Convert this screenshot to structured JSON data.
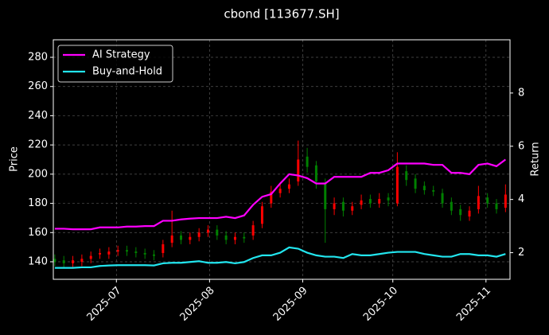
{
  "chart_data": {
    "type": "candlestick",
    "title": "cbond [113677.SH]",
    "ylabel": "Price",
    "y2label": "Return",
    "x": [
      1,
      4,
      7,
      10,
      13,
      16,
      19,
      22,
      25,
      28,
      31,
      34,
      37,
      40,
      43,
      46,
      49,
      52,
      55,
      58,
      61,
      64,
      67,
      70,
      73,
      76,
      79,
      82,
      85,
      88,
      91,
      94,
      97,
      100,
      103,
      106,
      109,
      112,
      115,
      118,
      121,
      124,
      127,
      130,
      133,
      136,
      139,
      142,
      145,
      148,
      151
    ],
    "open": [
      142,
      141,
      139,
      140,
      142,
      145,
      145,
      147,
      148,
      147,
      146,
      145,
      146,
      153,
      158,
      155,
      157,
      160,
      162,
      158,
      155,
      157,
      158,
      166,
      180,
      187,
      190,
      195,
      212,
      206,
      194,
      176,
      181,
      175,
      179,
      183,
      180,
      184,
      180,
      202,
      197,
      192,
      189,
      187,
      181,
      176,
      171,
      176,
      184,
      180,
      177
    ],
    "high": [
      145,
      144,
      144,
      145,
      147,
      149,
      150,
      151,
      151,
      150,
      149,
      148,
      155,
      175,
      161,
      160,
      163,
      165,
      165,
      161,
      160,
      160,
      168,
      181,
      192,
      194,
      197,
      223,
      218,
      209,
      197,
      184,
      184,
      181,
      186,
      186,
      187,
      187,
      215,
      206,
      200,
      195,
      192,
      190,
      184,
      179,
      178,
      192,
      187,
      183,
      193
    ],
    "low": [
      137,
      136,
      136,
      137,
      139,
      142,
      142,
      144,
      144,
      143,
      142,
      141,
      143,
      150,
      152,
      152,
      154,
      157,
      155,
      152,
      152,
      153,
      155,
      163,
      177,
      184,
      187,
      192,
      201,
      190,
      153,
      172,
      171,
      172,
      176,
      177,
      177,
      178,
      178,
      192,
      187,
      186,
      185,
      177,
      172,
      168,
      168,
      173,
      177,
      173,
      174
    ],
    "close": [
      140,
      139,
      141,
      142,
      144,
      146,
      147,
      148,
      147,
      146,
      145,
      144,
      152,
      158,
      155,
      157,
      160,
      162,
      158,
      155,
      157,
      156,
      165,
      178,
      188,
      190,
      193,
      210,
      205,
      195,
      176,
      180,
      175,
      178,
      182,
      180,
      183,
      182,
      205,
      196,
      190,
      189,
      188,
      180,
      175,
      172,
      175,
      185,
      180,
      176,
      186
    ],
    "up_color": "#ff0000",
    "down_color": "#008000",
    "series": [
      {
        "name": "AI Strategy",
        "color": "#ff00ff",
        "axis": "y2",
        "values": [
          2.9,
          2.9,
          2.88,
          2.88,
          2.88,
          2.95,
          2.95,
          2.95,
          2.98,
          2.98,
          3.0,
          3.0,
          3.2,
          3.2,
          3.25,
          3.28,
          3.3,
          3.3,
          3.3,
          3.35,
          3.3,
          3.4,
          3.8,
          4.1,
          4.2,
          4.6,
          4.95,
          4.9,
          4.8,
          4.6,
          4.6,
          4.85,
          4.85,
          4.85,
          4.85,
          5.0,
          5.0,
          5.1,
          5.35,
          5.35,
          5.35,
          5.35,
          5.3,
          5.3,
          5.0,
          5.0,
          4.95,
          5.3,
          5.35,
          5.25,
          5.5
        ]
      },
      {
        "name": "Buy-and-Hold",
        "color": "#22e5ee",
        "axis": "y2",
        "values": [
          1.43,
          1.43,
          1.43,
          1.45,
          1.45,
          1.5,
          1.52,
          1.53,
          1.53,
          1.53,
          1.53,
          1.52,
          1.6,
          1.62,
          1.62,
          1.65,
          1.68,
          1.62,
          1.62,
          1.65,
          1.6,
          1.65,
          1.8,
          1.9,
          1.9,
          2.0,
          2.2,
          2.15,
          2.0,
          1.9,
          1.85,
          1.85,
          1.8,
          1.95,
          1.9,
          1.9,
          1.95,
          2.0,
          2.03,
          2.03,
          2.03,
          1.95,
          1.9,
          1.85,
          1.85,
          1.95,
          1.95,
          1.9,
          1.9,
          1.85,
          1.95
        ]
      }
    ],
    "xlim": [
      0.5,
      152.5
    ],
    "xticks": [
      {
        "value": 21.5,
        "label": "2025-07"
      },
      {
        "value": 52.5,
        "label": "2025-08"
      },
      {
        "value": 83.5,
        "label": "2025-09"
      },
      {
        "value": 113.5,
        "label": "2025-10"
      },
      {
        "value": 144.5,
        "label": "2025-11"
      }
    ],
    "ylim": [
      128,
      292
    ],
    "yticks": [
      140,
      160,
      180,
      200,
      220,
      240,
      260,
      280
    ],
    "y2lim": [
      1.0,
      10.0
    ],
    "y2ticks": [
      2,
      4,
      6,
      8
    ],
    "grid": true,
    "legend": "upper left"
  }
}
